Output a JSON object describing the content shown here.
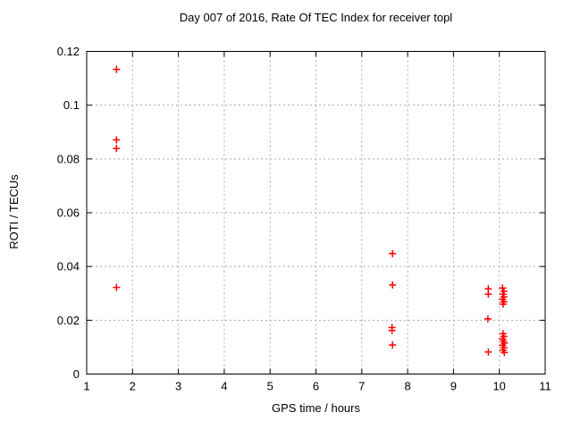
{
  "chart_data": {
    "type": "scatter",
    "title": "Day 007 of 2016, Rate Of TEC Index for receiver topl",
    "xlabel": "GPS time / hours",
    "ylabel": "ROTI / TECUs",
    "xlim": [
      1,
      11
    ],
    "ylim": [
      0,
      0.12
    ],
    "xticks": [
      1,
      2,
      3,
      4,
      5,
      6,
      7,
      8,
      9,
      10,
      11
    ],
    "xtick_labels": [
      "1",
      "2",
      "3",
      "4",
      "5",
      "6",
      "7",
      "8",
      "9",
      "10",
      "11"
    ],
    "yticks": [
      0,
      0.02,
      0.04,
      0.06,
      0.08,
      0.1,
      0.12
    ],
    "ytick_labels": [
      "0",
      "0.02",
      "0.04",
      "0.06",
      "0.08",
      "0.1",
      "0.12"
    ],
    "grid": true,
    "grid_color": "#aaaaaa",
    "frame_color": "#000000",
    "legend": false,
    "marker": "plus",
    "marker_color": "#ff0000",
    "series": [
      {
        "name": "ROTI",
        "points": [
          [
            1.65,
            0.1133
          ],
          [
            1.65,
            0.0871
          ],
          [
            1.65,
            0.0839
          ],
          [
            1.65,
            0.0322
          ],
          [
            7.67,
            0.0448
          ],
          [
            7.67,
            0.0331
          ],
          [
            7.66,
            0.0173
          ],
          [
            7.66,
            0.0162
          ],
          [
            7.67,
            0.0108
          ],
          [
            9.76,
            0.0317
          ],
          [
            9.76,
            0.0297
          ],
          [
            9.75,
            0.0205
          ],
          [
            9.76,
            0.0082
          ],
          [
            10.07,
            0.032
          ],
          [
            10.1,
            0.0308
          ],
          [
            10.08,
            0.0297
          ],
          [
            10.1,
            0.0287
          ],
          [
            10.07,
            0.0278
          ],
          [
            10.1,
            0.0269
          ],
          [
            10.08,
            0.026
          ],
          [
            10.08,
            0.015
          ],
          [
            10.1,
            0.014
          ],
          [
            10.07,
            0.0131
          ],
          [
            10.09,
            0.0123
          ],
          [
            10.11,
            0.0115
          ],
          [
            10.07,
            0.0107
          ],
          [
            10.1,
            0.0098
          ],
          [
            10.08,
            0.0089
          ],
          [
            10.11,
            0.008
          ]
        ]
      }
    ]
  }
}
